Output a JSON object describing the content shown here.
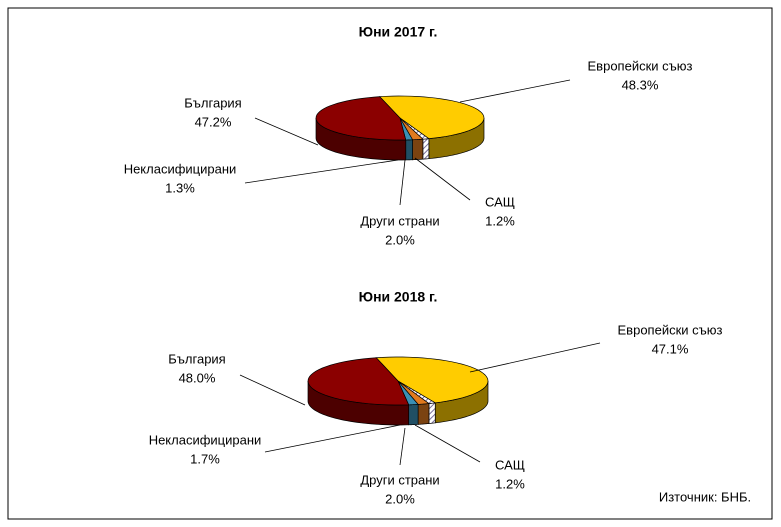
{
  "chart_data": [
    {
      "type": "pie",
      "title": "Юни 2017 г.",
      "categories": [
        "Европейски съюз",
        "САЩ",
        "Други страни",
        "Некласифицирани",
        "България"
      ],
      "values": [
        48.3,
        1.2,
        2.0,
        1.3,
        47.2
      ],
      "value_labels": [
        "48.3%",
        "1.2%",
        "2.0%",
        "1.3%",
        "47.2%"
      ],
      "colors": [
        "#ffcc00",
        "#b0a8c8",
        "#e07a1f",
        "#3a8fb5",
        "#8b0000"
      ]
    },
    {
      "type": "pie",
      "title": "Юни 2018 г.",
      "categories": [
        "Европейски съюз",
        "САЩ",
        "Други страни",
        "Некласифицирани",
        "България"
      ],
      "values": [
        47.1,
        1.2,
        2.0,
        1.7,
        48.0
      ],
      "value_labels": [
        "47.1%",
        "1.2%",
        "2.0%",
        "1.7%",
        "48.0%"
      ],
      "colors": [
        "#ffcc00",
        "#b0a8c8",
        "#e07a1f",
        "#3a8fb5",
        "#8b0000"
      ]
    }
  ],
  "source": "Източник: БНБ."
}
